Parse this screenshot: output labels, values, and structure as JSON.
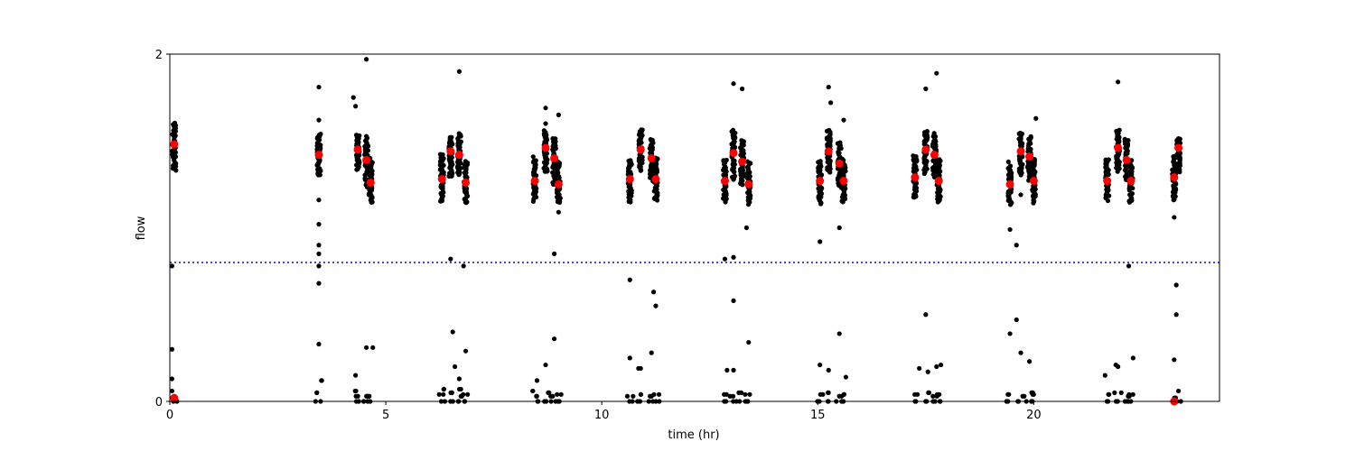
{
  "chart_data": {
    "type": "scatter",
    "title": "",
    "xlabel": "time (hr)",
    "ylabel": "flow",
    "xlim": [
      0,
      24.3
    ],
    "ylim": [
      0,
      2
    ],
    "x_ticks": [
      0,
      5,
      10,
      15,
      20
    ],
    "y_ticks": [
      0,
      2
    ],
    "grid": false,
    "threshold": {
      "y": 0.8,
      "style": "dotted",
      "color": "#0000ff"
    },
    "raw_color": "#000000",
    "highlight_color": "#ff0000",
    "blocks": [
      {
        "x": 0.1,
        "top_center": 1.47,
        "top_spread": 0.14,
        "zeros": [
          0.0,
          0.02
        ]
      },
      {
        "x": 3.45,
        "top_center": 1.42,
        "top_spread": 0.12,
        "zeros": [
          0.0,
          0.05,
          0.12
        ]
      },
      {
        "x": 4.35,
        "top_center": 1.44,
        "top_spread": 0.1,
        "zeros": [
          0.0,
          0.03,
          0.06
        ]
      },
      {
        "x": 4.55,
        "top_center": 1.38,
        "top_spread": 0.14,
        "zeros": [
          0.0,
          0.03
        ]
      },
      {
        "x": 4.65,
        "top_center": 1.27,
        "top_spread": 0.12,
        "zeros": [
          0.0,
          0.03
        ]
      },
      {
        "x": 6.3,
        "top_center": 1.29,
        "top_spread": 0.14,
        "zeros": [
          0.0,
          0.04,
          0.07
        ]
      },
      {
        "x": 6.5,
        "top_center": 1.41,
        "top_spread": 0.12,
        "zeros": [
          0.0,
          0.05
        ]
      },
      {
        "x": 6.7,
        "top_center": 1.42,
        "top_spread": 0.12,
        "zeros": [
          0.0,
          0.03,
          0.07
        ]
      },
      {
        "x": 6.85,
        "top_center": 1.26,
        "top_spread": 0.12,
        "zeros": [
          0.0,
          0.04
        ]
      },
      {
        "x": 8.45,
        "top_center": 1.28,
        "top_spread": 0.12,
        "zeros": [
          0.0,
          0.03,
          0.06
        ]
      },
      {
        "x": 8.7,
        "top_center": 1.44,
        "top_spread": 0.12,
        "zeros": [
          0.0,
          0.05
        ]
      },
      {
        "x": 8.9,
        "top_center": 1.39,
        "top_spread": 0.13,
        "zeros": [
          0.0,
          0.03
        ]
      },
      {
        "x": 9.0,
        "top_center": 1.26,
        "top_spread": 0.12,
        "zeros": [
          0.0,
          0.04
        ]
      },
      {
        "x": 10.65,
        "top_center": 1.27,
        "top_spread": 0.12,
        "zeros": [
          0.0,
          0.03
        ]
      },
      {
        "x": 10.9,
        "top_center": 1.45,
        "top_spread": 0.12,
        "zeros": [
          0.0,
          0.04
        ]
      },
      {
        "x": 11.15,
        "top_center": 1.39,
        "top_spread": 0.12,
        "zeros": [
          0.0,
          0.03
        ]
      },
      {
        "x": 11.25,
        "top_center": 1.28,
        "top_spread": 0.12,
        "zeros": [
          0.0,
          0.04
        ]
      },
      {
        "x": 12.85,
        "top_center": 1.27,
        "top_spread": 0.12,
        "zeros": [
          0.0,
          0.04
        ]
      },
      {
        "x": 13.05,
        "top_center": 1.42,
        "top_spread": 0.14,
        "zeros": [
          0.0,
          0.03
        ]
      },
      {
        "x": 13.25,
        "top_center": 1.38,
        "top_spread": 0.13,
        "zeros": [
          0.0,
          0.05
        ]
      },
      {
        "x": 13.4,
        "top_center": 1.26,
        "top_spread": 0.12,
        "zeros": [
          0.0,
          0.04
        ]
      },
      {
        "x": 15.05,
        "top_center": 1.26,
        "top_spread": 0.12,
        "zeros": [
          0.0,
          0.04
        ]
      },
      {
        "x": 15.25,
        "top_center": 1.44,
        "top_spread": 0.12,
        "zeros": [
          0.0,
          0.05
        ]
      },
      {
        "x": 15.5,
        "top_center": 1.36,
        "top_spread": 0.13,
        "zeros": [
          0.0,
          0.03
        ]
      },
      {
        "x": 15.6,
        "top_center": 1.27,
        "top_spread": 0.12,
        "zeros": [
          0.0,
          0.04
        ]
      },
      {
        "x": 17.25,
        "top_center": 1.29,
        "top_spread": 0.12,
        "zeros": [
          0.0,
          0.04
        ]
      },
      {
        "x": 17.5,
        "top_center": 1.44,
        "top_spread": 0.12,
        "zeros": [
          0.0,
          0.05
        ]
      },
      {
        "x": 17.7,
        "top_center": 1.42,
        "top_spread": 0.12,
        "zeros": [
          0.0,
          0.03
        ]
      },
      {
        "x": 17.8,
        "top_center": 1.27,
        "top_spread": 0.12,
        "zeros": [
          0.0,
          0.04
        ]
      },
      {
        "x": 19.45,
        "top_center": 1.25,
        "top_spread": 0.12,
        "zeros": [
          0.0,
          0.04
        ]
      },
      {
        "x": 19.7,
        "top_center": 1.43,
        "top_spread": 0.12,
        "zeros": [
          0.0,
          0.03
        ]
      },
      {
        "x": 19.9,
        "top_center": 1.4,
        "top_spread": 0.12,
        "zeros": [
          0.0,
          0.05
        ]
      },
      {
        "x": 20.0,
        "top_center": 1.27,
        "top_spread": 0.12,
        "zeros": [
          0.0,
          0.04
        ]
      },
      {
        "x": 21.7,
        "top_center": 1.28,
        "top_spread": 0.12,
        "zeros": [
          0.0,
          0.04
        ]
      },
      {
        "x": 21.95,
        "top_center": 1.45,
        "top_spread": 0.12,
        "zeros": [
          0.0,
          0.05
        ]
      },
      {
        "x": 22.15,
        "top_center": 1.39,
        "top_spread": 0.12,
        "zeros": [
          0.0,
          0.03
        ]
      },
      {
        "x": 22.25,
        "top_center": 1.27,
        "top_spread": 0.12,
        "zeros": [
          0.0,
          0.04
        ]
      },
      {
        "x": 23.25,
        "top_center": 1.29,
        "top_spread": 0.13,
        "zeros": [
          0.0,
          0.02
        ]
      },
      {
        "x": 23.35,
        "top_center": 1.42,
        "top_spread": 0.1,
        "zeros": [
          0.0
        ]
      }
    ],
    "outliers": [
      {
        "x": 0.05,
        "y": 0.78
      },
      {
        "x": 0.05,
        "y": 0.3
      },
      {
        "x": 0.05,
        "y": 0.13
      },
      {
        "x": 0.05,
        "y": 0.06
      },
      {
        "x": 3.45,
        "y": 1.81
      },
      {
        "x": 3.45,
        "y": 1.62
      },
      {
        "x": 3.45,
        "y": 1.16
      },
      {
        "x": 3.45,
        "y": 1.02
      },
      {
        "x": 3.45,
        "y": 0.9
      },
      {
        "x": 3.45,
        "y": 0.85
      },
      {
        "x": 3.45,
        "y": 0.78
      },
      {
        "x": 3.45,
        "y": 0.68
      },
      {
        "x": 3.45,
        "y": 0.33
      },
      {
        "x": 4.25,
        "y": 1.75
      },
      {
        "x": 4.3,
        "y": 1.7
      },
      {
        "x": 4.55,
        "y": 1.97
      },
      {
        "x": 4.55,
        "y": 0.31
      },
      {
        "x": 4.7,
        "y": 0.31
      },
      {
        "x": 4.3,
        "y": 0.15
      },
      {
        "x": 6.5,
        "y": 0.82
      },
      {
        "x": 6.55,
        "y": 0.4
      },
      {
        "x": 6.6,
        "y": 0.2
      },
      {
        "x": 6.7,
        "y": 1.9
      },
      {
        "x": 6.8,
        "y": 0.78
      },
      {
        "x": 6.85,
        "y": 0.29
      },
      {
        "x": 6.7,
        "y": 0.13
      },
      {
        "x": 8.5,
        "y": 0.12
      },
      {
        "x": 8.7,
        "y": 1.69
      },
      {
        "x": 8.7,
        "y": 1.6
      },
      {
        "x": 8.7,
        "y": 0.21
      },
      {
        "x": 8.9,
        "y": 0.85
      },
      {
        "x": 8.9,
        "y": 0.36
      },
      {
        "x": 9.0,
        "y": 1.65
      },
      {
        "x": 9.0,
        "y": 1.09
      },
      {
        "x": 10.65,
        "y": 0.7
      },
      {
        "x": 10.65,
        "y": 0.25
      },
      {
        "x": 10.85,
        "y": 0.19
      },
      {
        "x": 10.9,
        "y": 0.19
      },
      {
        "x": 11.15,
        "y": 0.28
      },
      {
        "x": 11.2,
        "y": 0.63
      },
      {
        "x": 11.25,
        "y": 0.55
      },
      {
        "x": 12.85,
        "y": 0.82
      },
      {
        "x": 12.9,
        "y": 0.18
      },
      {
        "x": 13.05,
        "y": 1.83
      },
      {
        "x": 13.05,
        "y": 0.83
      },
      {
        "x": 13.05,
        "y": 0.58
      },
      {
        "x": 13.25,
        "y": 1.8
      },
      {
        "x": 13.35,
        "y": 1.0
      },
      {
        "x": 13.4,
        "y": 0.34
      },
      {
        "x": 13.05,
        "y": 0.18
      },
      {
        "x": 15.05,
        "y": 0.92
      },
      {
        "x": 15.05,
        "y": 0.21
      },
      {
        "x": 15.25,
        "y": 1.81
      },
      {
        "x": 15.3,
        "y": 1.72
      },
      {
        "x": 15.25,
        "y": 0.18
      },
      {
        "x": 15.5,
        "y": 1.0
      },
      {
        "x": 15.5,
        "y": 0.39
      },
      {
        "x": 15.65,
        "y": 0.14
      },
      {
        "x": 15.6,
        "y": 1.62
      },
      {
        "x": 17.35,
        "y": 0.19
      },
      {
        "x": 17.5,
        "y": 1.8
      },
      {
        "x": 17.5,
        "y": 0.5
      },
      {
        "x": 17.55,
        "y": 0.17
      },
      {
        "x": 17.75,
        "y": 1.89
      },
      {
        "x": 17.75,
        "y": 0.2
      },
      {
        "x": 17.85,
        "y": 0.21
      },
      {
        "x": 19.45,
        "y": 0.99
      },
      {
        "x": 19.45,
        "y": 0.39
      },
      {
        "x": 19.6,
        "y": 0.9
      },
      {
        "x": 19.6,
        "y": 0.47
      },
      {
        "x": 19.7,
        "y": 1.19
      },
      {
        "x": 19.7,
        "y": 0.28
      },
      {
        "x": 19.9,
        "y": 0.23
      },
      {
        "x": 20.05,
        "y": 1.63
      },
      {
        "x": 21.65,
        "y": 0.15
      },
      {
        "x": 21.9,
        "y": 0.21
      },
      {
        "x": 21.95,
        "y": 1.84
      },
      {
        "x": 22.2,
        "y": 0.78
      },
      {
        "x": 22.3,
        "y": 0.25
      },
      {
        "x": 21.95,
        "y": 0.2
      },
      {
        "x": 23.25,
        "y": 1.06
      },
      {
        "x": 23.3,
        "y": 0.67
      },
      {
        "x": 23.3,
        "y": 0.5
      },
      {
        "x": 23.25,
        "y": 0.24
      },
      {
        "x": 23.35,
        "y": 0.06
      }
    ],
    "highlights": [
      {
        "x": 0.1,
        "y": 1.48
      },
      {
        "x": 0.1,
        "y": 0.02
      },
      {
        "x": 3.45,
        "y": 1.42
      },
      {
        "x": 4.35,
        "y": 1.45
      },
      {
        "x": 4.55,
        "y": 1.39
      },
      {
        "x": 4.65,
        "y": 1.26
      },
      {
        "x": 6.3,
        "y": 1.28
      },
      {
        "x": 6.5,
        "y": 1.44
      },
      {
        "x": 6.7,
        "y": 1.42
      },
      {
        "x": 6.85,
        "y": 1.26
      },
      {
        "x": 8.45,
        "y": 1.27
      },
      {
        "x": 8.7,
        "y": 1.46
      },
      {
        "x": 8.9,
        "y": 1.4
      },
      {
        "x": 9.0,
        "y": 1.25
      },
      {
        "x": 10.65,
        "y": 1.28
      },
      {
        "x": 10.9,
        "y": 1.45
      },
      {
        "x": 11.15,
        "y": 1.4
      },
      {
        "x": 11.25,
        "y": 1.28
      },
      {
        "x": 12.85,
        "y": 1.27
      },
      {
        "x": 13.05,
        "y": 1.43
      },
      {
        "x": 13.25,
        "y": 1.38
      },
      {
        "x": 13.4,
        "y": 1.25
      },
      {
        "x": 15.05,
        "y": 1.27
      },
      {
        "x": 15.25,
        "y": 1.44
      },
      {
        "x": 15.5,
        "y": 1.37
      },
      {
        "x": 15.6,
        "y": 1.27
      },
      {
        "x": 17.25,
        "y": 1.29
      },
      {
        "x": 17.5,
        "y": 1.45
      },
      {
        "x": 17.7,
        "y": 1.42
      },
      {
        "x": 17.8,
        "y": 1.27
      },
      {
        "x": 19.45,
        "y": 1.25
      },
      {
        "x": 19.7,
        "y": 1.44
      },
      {
        "x": 19.9,
        "y": 1.41
      },
      {
        "x": 20.0,
        "y": 1.27
      },
      {
        "x": 21.7,
        "y": 1.27
      },
      {
        "x": 21.95,
        "y": 1.46
      },
      {
        "x": 22.15,
        "y": 1.39
      },
      {
        "x": 22.25,
        "y": 1.27
      },
      {
        "x": 23.25,
        "y": 1.29
      },
      {
        "x": 23.35,
        "y": 1.46
      },
      {
        "x": 23.25,
        "y": 0.0
      }
    ]
  }
}
